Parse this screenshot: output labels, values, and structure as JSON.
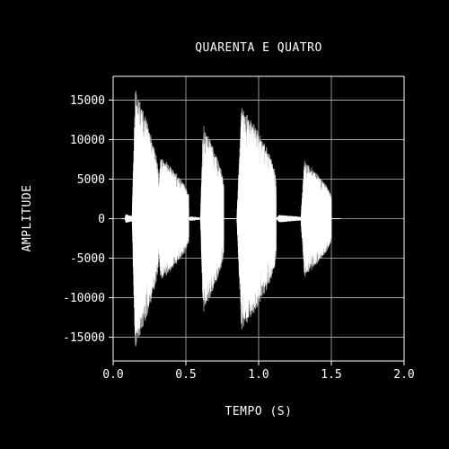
{
  "chart_data": {
    "type": "line",
    "title": "QUARENTA E QUATRO",
    "xlabel": "TEMPO (S)",
    "ylabel": "AMPLITUDE",
    "xlim": [
      0.0,
      2.0
    ],
    "ylim": [
      -18000,
      18000
    ],
    "xticks": [
      "0.0",
      "0.5",
      "1.0",
      "1.5",
      "2.0"
    ],
    "yticks": [
      "-15000",
      "-10000",
      "-5000",
      "0",
      "5000",
      "10000",
      "15000"
    ],
    "grid": true,
    "colors": {
      "background": "#000000",
      "signal": "#ffffff",
      "secondary": "#999999",
      "grid": "#bbbbbb"
    },
    "series": [
      {
        "segments": [
          {
            "t0": 0.08,
            "t1": 0.14,
            "amp": 600
          },
          {
            "t0": 0.13,
            "t1": 0.31,
            "amp": 16500
          },
          {
            "t0": 0.3,
            "t1": 0.52,
            "amp": 8000
          },
          {
            "t0": 0.52,
            "t1": 0.6,
            "amp": 300
          },
          {
            "t0": 0.6,
            "t1": 0.76,
            "amp": 12000
          },
          {
            "t0": 0.85,
            "t1": 1.12,
            "amp": 14500
          },
          {
            "t0": 1.12,
            "t1": 1.3,
            "amp": 500
          },
          {
            "t0": 1.29,
            "t1": 1.5,
            "amp": 7500
          }
        ]
      }
    ]
  }
}
